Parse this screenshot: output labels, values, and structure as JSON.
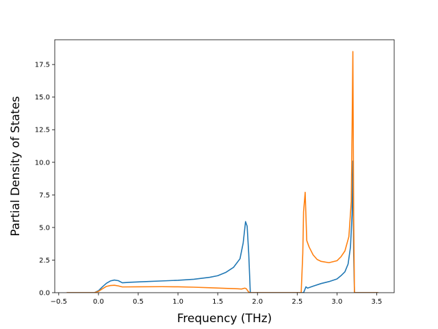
{
  "chart_data": {
    "type": "line",
    "title": "",
    "xlabel": "Frequency (THz)",
    "ylabel": "Partial Density of States",
    "xlim": [
      -0.55,
      3.72
    ],
    "ylim": [
      0,
      19.4
    ],
    "xticks": [
      -0.5,
      0.0,
      0.5,
      1.0,
      1.5,
      2.0,
      2.5,
      3.0,
      3.5
    ],
    "xtick_labels": [
      "−0.5",
      "0.0",
      "0.5",
      "1.0",
      "1.5",
      "2.0",
      "2.5",
      "3.0",
      "3.5"
    ],
    "yticks": [
      0.0,
      2.5,
      5.0,
      7.5,
      10.0,
      12.5,
      15.0,
      17.5
    ],
    "ytick_labels": [
      "0.0",
      "2.5",
      "5.0",
      "7.5",
      "10.0",
      "12.5",
      "15.0",
      "17.5"
    ],
    "grid": false,
    "legend": "none",
    "series": [
      {
        "color": "#1f77b4",
        "points": [
          [
            -0.4,
            0.0
          ],
          [
            -0.05,
            0.0
          ],
          [
            0.0,
            0.15
          ],
          [
            0.05,
            0.45
          ],
          [
            0.1,
            0.72
          ],
          [
            0.15,
            0.9
          ],
          [
            0.2,
            0.97
          ],
          [
            0.25,
            0.92
          ],
          [
            0.3,
            0.76
          ],
          [
            0.4,
            0.8
          ],
          [
            0.6,
            0.85
          ],
          [
            0.8,
            0.9
          ],
          [
            1.0,
            0.95
          ],
          [
            1.2,
            1.03
          ],
          [
            1.4,
            1.18
          ],
          [
            1.5,
            1.3
          ],
          [
            1.6,
            1.55
          ],
          [
            1.7,
            1.95
          ],
          [
            1.78,
            2.6
          ],
          [
            1.82,
            3.8
          ],
          [
            1.85,
            5.45
          ],
          [
            1.87,
            5.1
          ],
          [
            1.89,
            3.0
          ],
          [
            1.91,
            0.0
          ],
          [
            2.58,
            0.0
          ],
          [
            2.6,
            0.3
          ],
          [
            2.61,
            0.45
          ],
          [
            2.63,
            0.35
          ],
          [
            2.7,
            0.5
          ],
          [
            2.8,
            0.7
          ],
          [
            2.9,
            0.85
          ],
          [
            3.0,
            1.05
          ],
          [
            3.05,
            1.3
          ],
          [
            3.1,
            1.6
          ],
          [
            3.14,
            2.2
          ],
          [
            3.17,
            3.5
          ],
          [
            3.19,
            6.0
          ],
          [
            3.2,
            10.1
          ],
          [
            3.21,
            3.0
          ],
          [
            3.22,
            0.0
          ],
          [
            3.52,
            0.0
          ]
        ]
      },
      {
        "color": "#ff7f0e",
        "points": [
          [
            -0.4,
            0.0
          ],
          [
            -0.05,
            0.0
          ],
          [
            0.0,
            0.1
          ],
          [
            0.05,
            0.3
          ],
          [
            0.1,
            0.48
          ],
          [
            0.15,
            0.55
          ],
          [
            0.2,
            0.57
          ],
          [
            0.25,
            0.52
          ],
          [
            0.3,
            0.44
          ],
          [
            0.5,
            0.45
          ],
          [
            0.8,
            0.46
          ],
          [
            1.0,
            0.45
          ],
          [
            1.2,
            0.42
          ],
          [
            1.4,
            0.38
          ],
          [
            1.6,
            0.33
          ],
          [
            1.75,
            0.3
          ],
          [
            1.8,
            0.28
          ],
          [
            1.84,
            0.35
          ],
          [
            1.86,
            0.3
          ],
          [
            1.88,
            0.12
          ],
          [
            1.9,
            0.0
          ],
          [
            2.55,
            0.0
          ],
          [
            2.57,
            3.0
          ],
          [
            2.58,
            6.2
          ],
          [
            2.6,
            7.7
          ],
          [
            2.62,
            4.0
          ],
          [
            2.65,
            3.5
          ],
          [
            2.7,
            2.9
          ],
          [
            2.75,
            2.55
          ],
          [
            2.8,
            2.4
          ],
          [
            2.9,
            2.3
          ],
          [
            3.0,
            2.45
          ],
          [
            3.05,
            2.75
          ],
          [
            3.1,
            3.2
          ],
          [
            3.15,
            4.3
          ],
          [
            3.18,
            7.0
          ],
          [
            3.19,
            12.5
          ],
          [
            3.2,
            18.5
          ],
          [
            3.21,
            6.0
          ],
          [
            3.22,
            0.0
          ],
          [
            3.52,
            0.0
          ]
        ]
      }
    ]
  }
}
